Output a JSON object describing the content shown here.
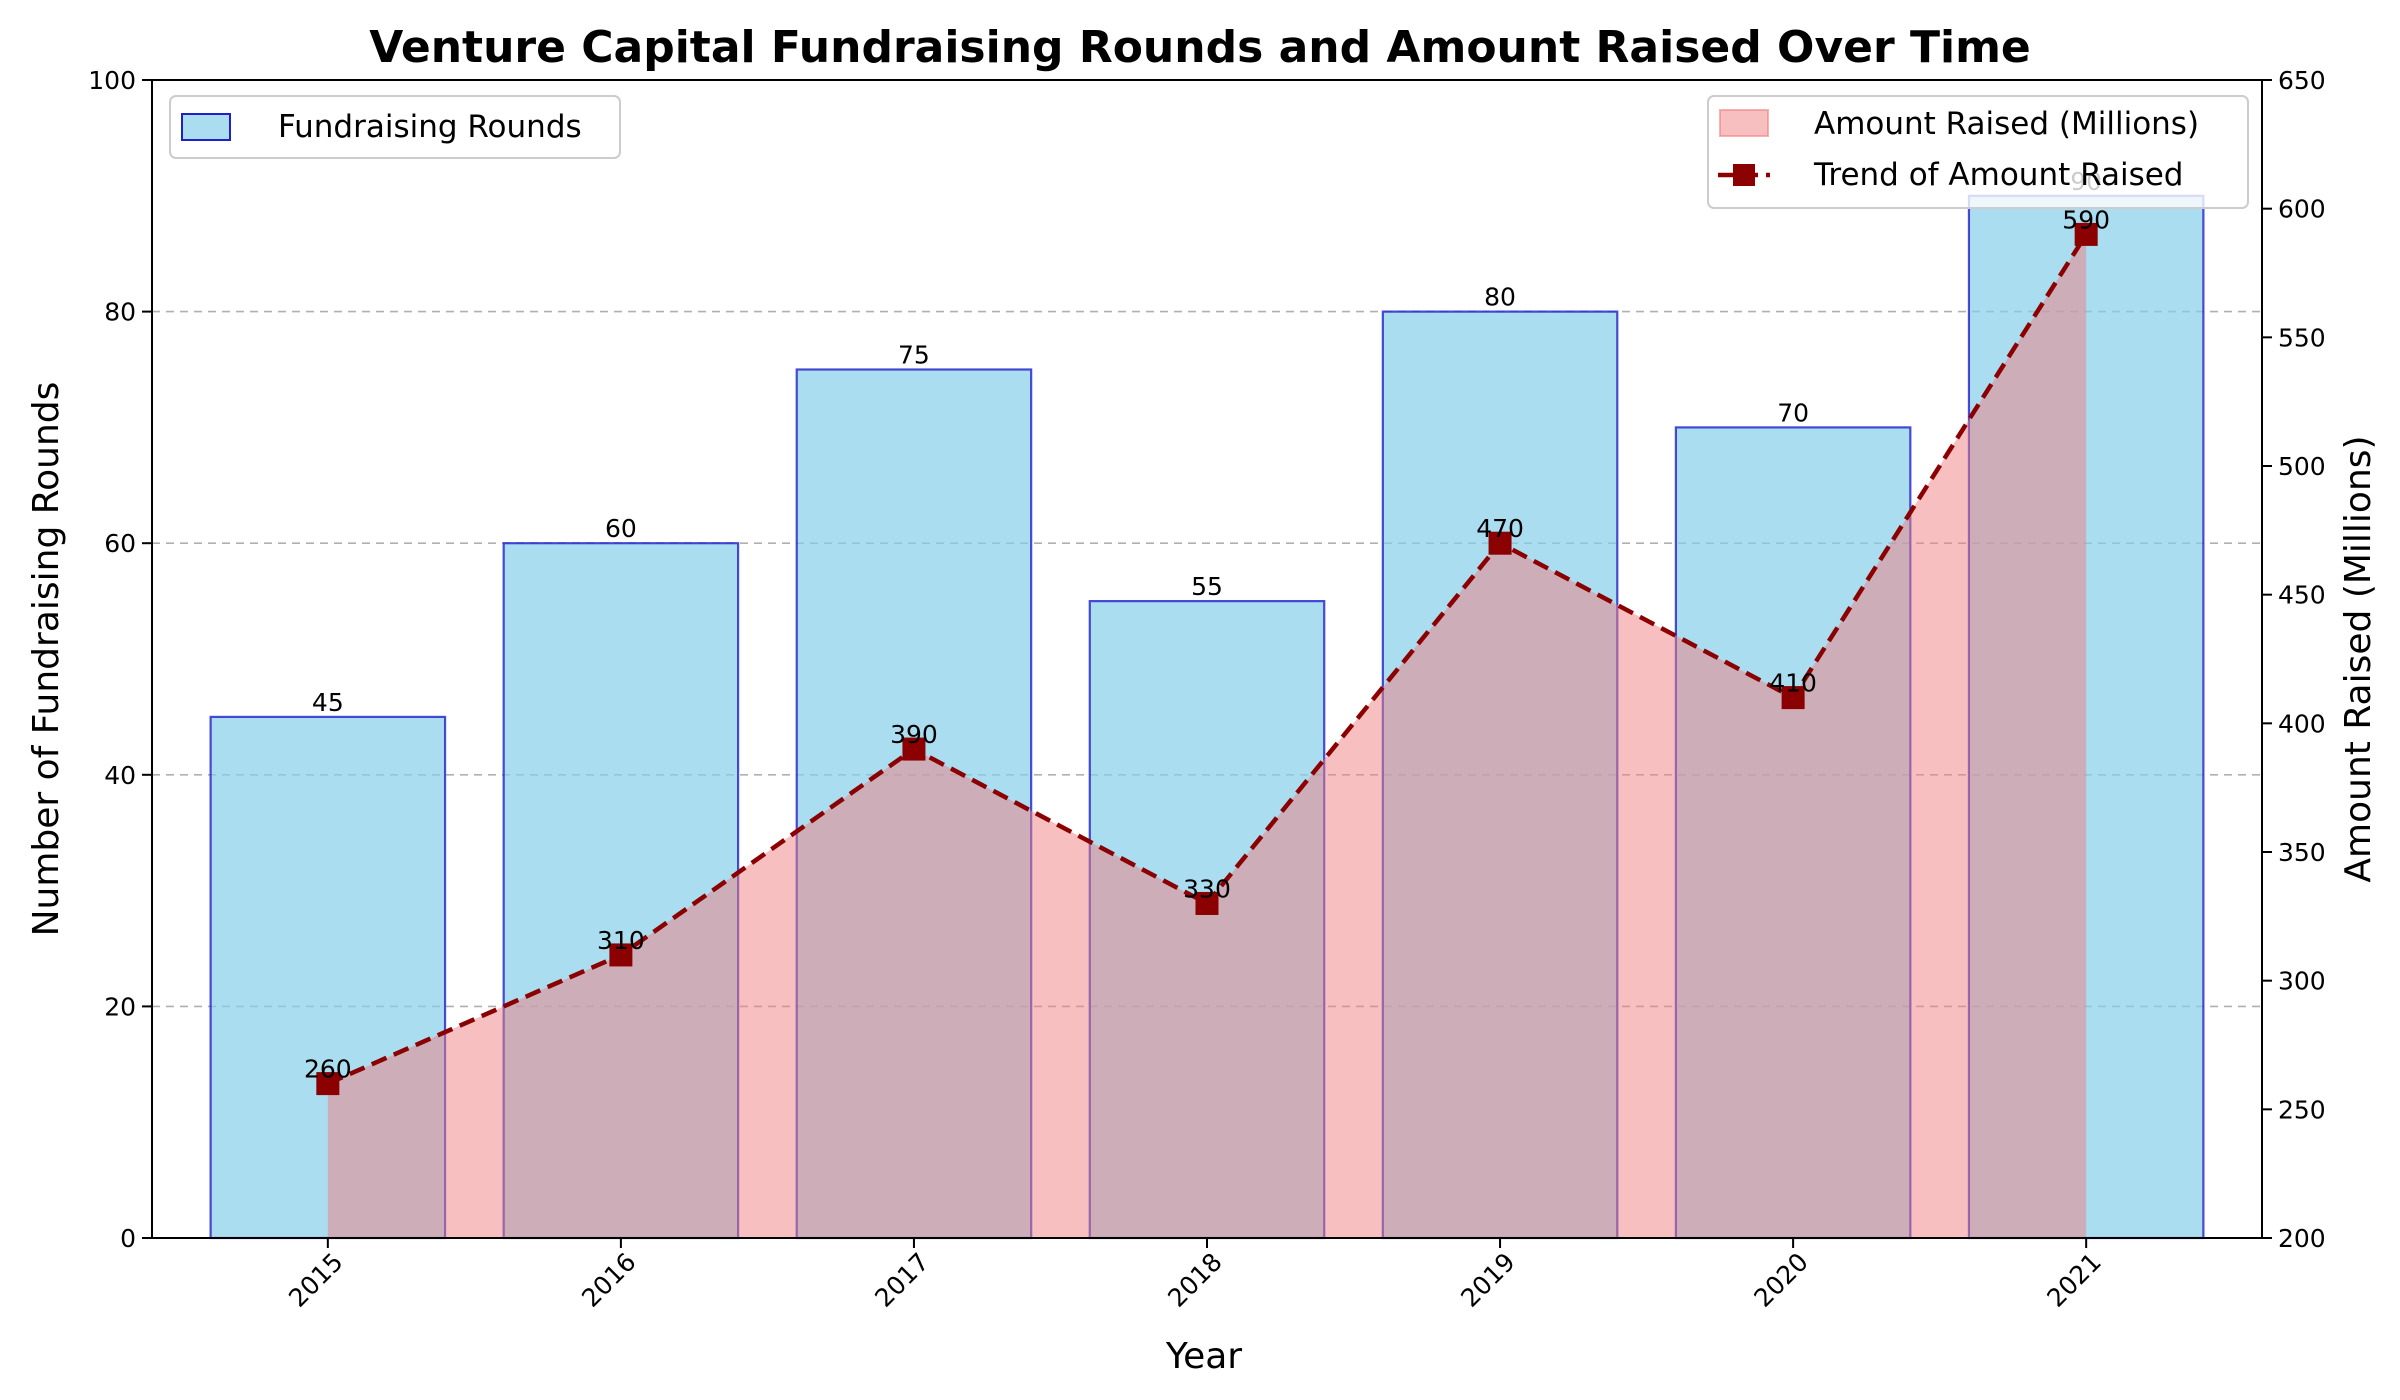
{
  "chart_data": {
    "type": "bar",
    "title": "Venture Capital Fundraising Rounds and Amount Raised Over Time",
    "xlabel": "Year",
    "ylabel": "Number of Fundraising Rounds",
    "ylabel_right": "Amount Raised (Millions)",
    "categories": [
      "2015",
      "2016",
      "2017",
      "2018",
      "2019",
      "2020",
      "2021"
    ],
    "ylim": [
      0,
      100
    ],
    "ylim_right": [
      200,
      650
    ],
    "yticks": [
      0,
      20,
      40,
      60,
      80,
      100
    ],
    "yticks_right": [
      200,
      250,
      300,
      350,
      400,
      450,
      500,
      550,
      600,
      650
    ],
    "grid": "horizontal dashed",
    "series": [
      {
        "name": "Fundraising Rounds",
        "type": "bar",
        "axis": "left",
        "values": [
          45,
          60,
          75,
          55,
          80,
          70,
          90
        ],
        "color": "#87CEEB",
        "edge_color": "#1f1fcc"
      },
      {
        "name": "Amount Raised (Millions)",
        "type": "area",
        "axis": "right",
        "values": [
          260,
          310,
          390,
          330,
          470,
          410,
          590
        ],
        "color": "#F08080"
      },
      {
        "name": "Trend of Amount Raised",
        "type": "line",
        "axis": "right",
        "values": [
          260,
          310,
          390,
          330,
          470,
          410,
          590
        ],
        "color": "#8B0000",
        "marker": "square",
        "linestyle": "dashed"
      }
    ],
    "legend_left": {
      "placement": "top-left",
      "entries": [
        "Fundraising Rounds"
      ]
    },
    "legend_right": {
      "placement": "top-right",
      "entries": [
        "Amount Raised (Millions)",
        "Trend of Amount Raised"
      ]
    }
  }
}
